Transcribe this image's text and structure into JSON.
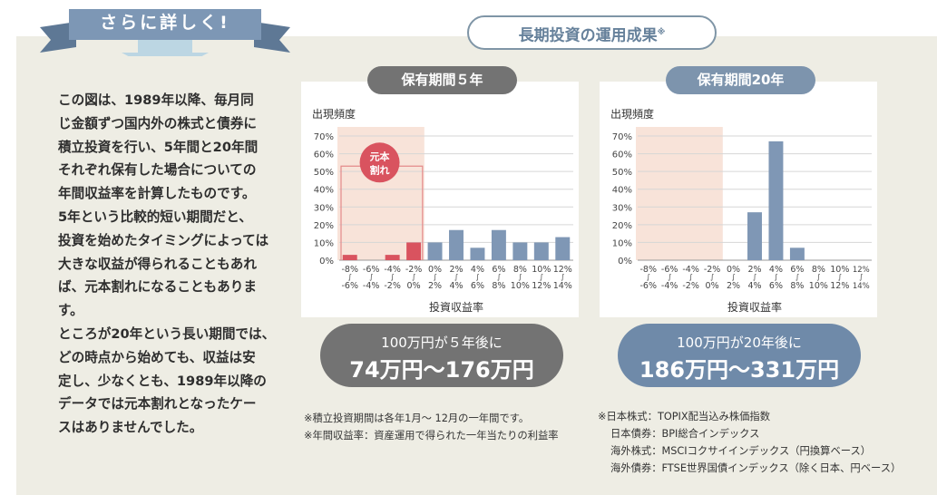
{
  "ribbon": {
    "label": "さらに詳しく!"
  },
  "intro": {
    "lines": [
      "この図は、1989年以降、毎月同",
      "じ金額ずつ国内外の株式と債券に",
      "積立投資を行い、5年間と20年間",
      "それぞれ保有した場合についての",
      "年間収益率を計算したものです。",
      "5年という比較的短い期間だと、",
      "投資を始めたタイミングによっては",
      "大きな収益が得られることもあれ",
      "ば、元本割れになることもあります。",
      "ところが20年という長い期間では、",
      "どの時点から始めても、収益は安",
      "定し、少なくとも、1989年以降の",
      "データでは元本割れとなったケー",
      "スはありませんでした。"
    ]
  },
  "main_title": {
    "text": "長期投資の運用成果",
    "mark": "※"
  },
  "badges": {
    "five": "保有期間５年",
    "twenty": "保有期間20年"
  },
  "loss_bubble": {
    "line1": "元本",
    "line2": "割れ"
  },
  "results": {
    "five": {
      "line1": "100万円が５年後に",
      "line2": "74万円〜176万円"
    },
    "twenty": {
      "line1": "100万円が20年後に",
      "line2": "186万円〜331万円"
    }
  },
  "notes_left": [
    "※積立投資期間は各年1月〜 12月の一年間です。",
    "※年間収益率：資産運用で得られた一年当たりの利益率"
  ],
  "notes_right": [
    "※日本株式：TOPIX配当込み株価指数",
    "日本債券：BPI総合インデックス",
    "海外株式：MSCIコクサイインデックス（円換算ベース）",
    "海外債券：FTSE世界国債インデックス（除く日本、円ベース）"
  ],
  "colors": {
    "loss_bar": "#d9535f",
    "gain_bar": "#7f97b5",
    "loss_zone": "#f8e3d9",
    "ribbon": "#7d97b5",
    "ribbon_dark": "#5e7895",
    "arrow": "#bcd6e3"
  },
  "chart_data": [
    {
      "type": "bar",
      "title": "保有期間５年",
      "xlabel": "投資収益率",
      "ylabel": "出現頻度",
      "ylim": [
        0,
        70
      ],
      "yticks": [
        "0%",
        "10%",
        "20%",
        "30%",
        "40%",
        "50%",
        "60%",
        "70%"
      ],
      "categories": [
        [
          "-8%",
          "-6%"
        ],
        [
          "-6%",
          "-4%"
        ],
        [
          "-4%",
          "-2%"
        ],
        [
          "-2%",
          "0%"
        ],
        [
          "0%",
          "2%"
        ],
        [
          "2%",
          "4%"
        ],
        [
          "4%",
          "6%"
        ],
        [
          "6%",
          "8%"
        ],
        [
          "8%",
          "10%"
        ],
        [
          "10%",
          "12%"
        ],
        [
          "12%",
          "14%"
        ]
      ],
      "values": [
        3,
        0,
        3,
        10,
        10,
        17,
        7,
        17,
        10,
        10,
        13
      ],
      "loss_categories": 4,
      "grid": true
    },
    {
      "type": "bar",
      "title": "保有期間20年",
      "xlabel": "投資収益率",
      "ylabel": "出現頻度",
      "ylim": [
        0,
        70
      ],
      "yticks": [
        "0%",
        "10%",
        "20%",
        "30%",
        "40%",
        "50%",
        "60%",
        "70%"
      ],
      "categories": [
        [
          "-8%",
          "-6%"
        ],
        [
          "-6%",
          "-4%"
        ],
        [
          "-4%",
          "-2%"
        ],
        [
          "-2%",
          "0%"
        ],
        [
          "0%",
          "2%"
        ],
        [
          "2%",
          "4%"
        ],
        [
          "4%",
          "6%"
        ],
        [
          "6%",
          "8%"
        ],
        [
          "8%",
          "10%"
        ],
        [
          "10%",
          "12%"
        ],
        [
          "12%",
          "14%"
        ]
      ],
      "values": [
        0,
        0,
        0,
        0,
        0,
        27,
        67,
        7,
        0,
        0,
        0
      ],
      "loss_categories": 4,
      "grid": true
    }
  ]
}
